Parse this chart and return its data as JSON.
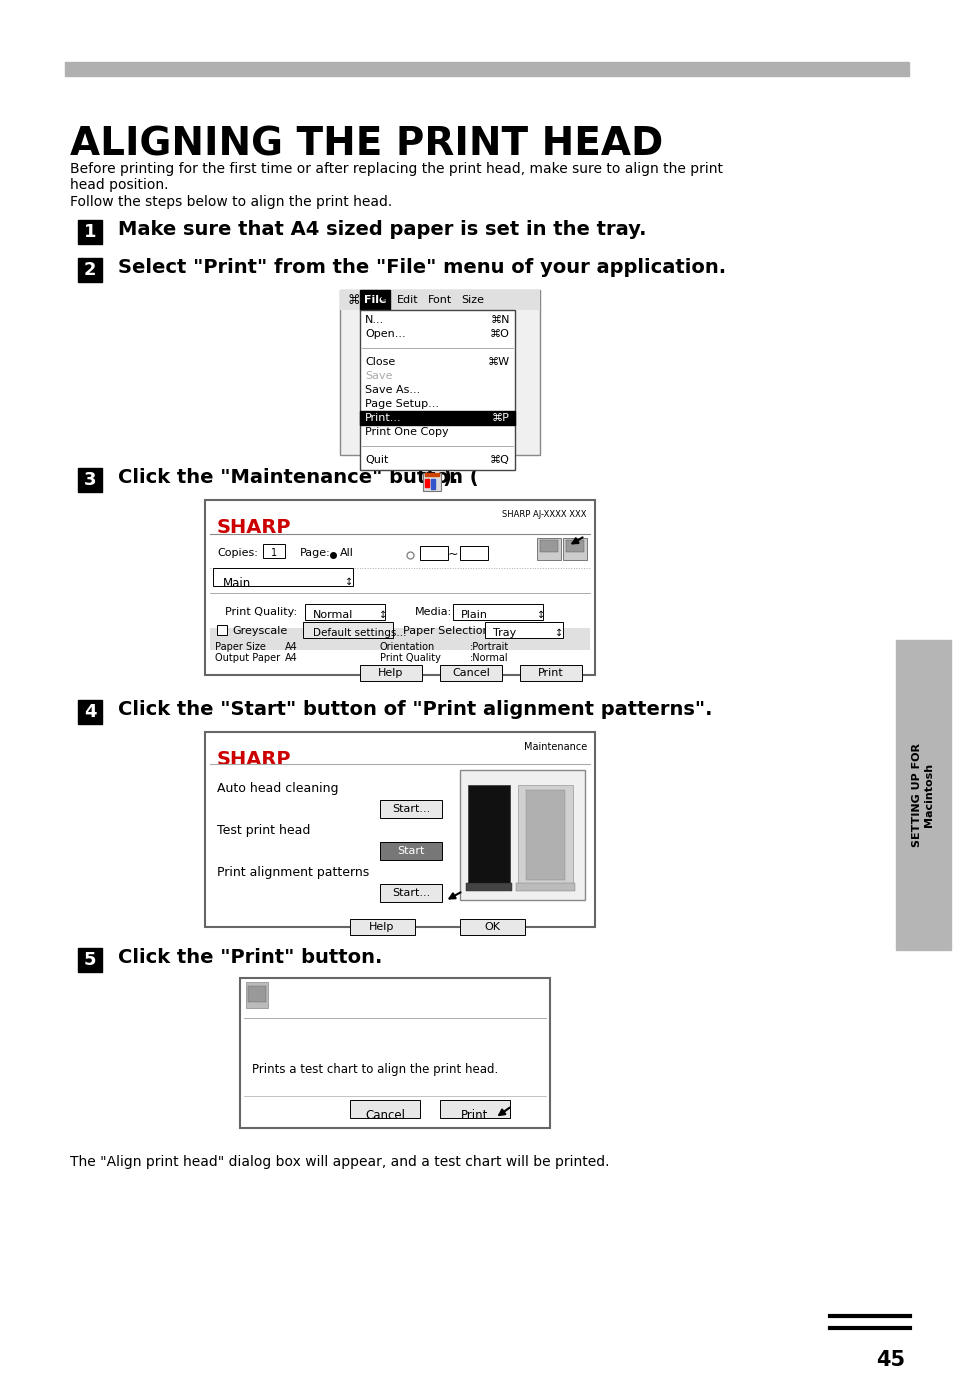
{
  "title": "ALIGNING THE PRINT HEAD",
  "bg_color": "#ffffff",
  "header_bar_color": "#b0b0b0",
  "page_number": "45",
  "intro_text_1": "Before printing for the first time or after replacing the print head, make sure to align the print",
  "intro_text_1b": "head position.",
  "intro_text_2": "Follow the steps below to align the print head.",
  "step1_text": "Make sure that A4 sized paper is set in the tray.",
  "step2_text": "Select \"Print\" from the \"File\" menu of your application.",
  "step3_text": "Click the \"Maintenance\" button (",
  "step3_text_end": ").",
  "step4_text": "Click the \"Start\" button of \"Print alignment patterns\".",
  "step5_text": "Click the \"Print\" button.",
  "footer_text": "The \"Align print head\" dialog box will appear, and a test chart will be printed.",
  "sidebar_text": "SETTING UP FOR\nMacintosh"
}
